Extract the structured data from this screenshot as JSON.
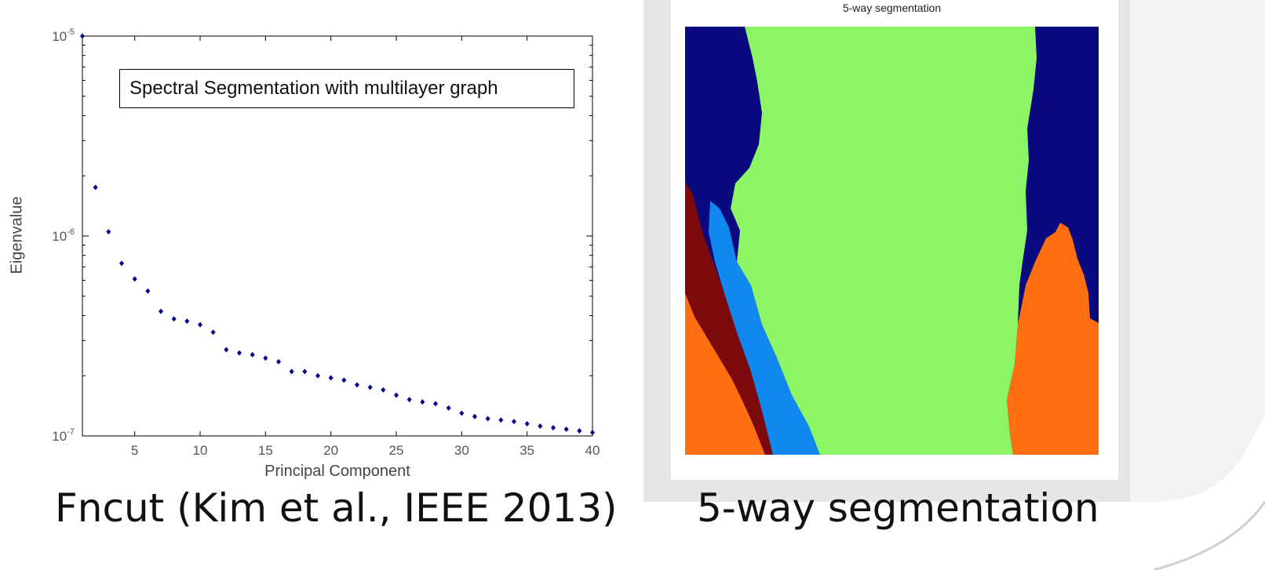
{
  "chart_data": {
    "type": "scatter",
    "legend_text": "Spectral Segmentation with multilayer graph",
    "xlabel": "Principal Component",
    "ylabel": "Eigenvalue",
    "y_scale": "log",
    "xlim": [
      1,
      40
    ],
    "ylim": [
      1e-07,
      1e-05
    ],
    "x_ticks": [
      5,
      10,
      15,
      20,
      25,
      30,
      35,
      40
    ],
    "y_ticks": [
      {
        "value": 1e-05,
        "label_base": "10",
        "label_exp": "-5"
      },
      {
        "value": 1e-06,
        "label_base": "10",
        "label_exp": "-6"
      },
      {
        "value": 1e-07,
        "label_base": "10",
        "label_exp": "-7"
      }
    ],
    "marker_color": "#00008b",
    "series": [
      {
        "x": [
          1,
          2,
          3,
          4,
          5,
          6,
          7,
          8,
          9,
          10,
          11,
          12,
          13,
          14,
          15,
          16,
          17,
          18,
          19,
          20,
          21,
          22,
          23,
          24,
          25,
          26,
          27,
          28,
          29,
          30,
          31,
          32,
          33,
          34,
          35,
          36,
          37,
          38,
          39,
          40
        ],
        "y": [
          1e-05,
          1.75e-06,
          1.05e-06,
          7.3e-07,
          6.1e-07,
          5.3e-07,
          4.2e-07,
          3.85e-07,
          3.75e-07,
          3.6e-07,
          3.3e-07,
          2.7e-07,
          2.6e-07,
          2.55e-07,
          2.45e-07,
          2.35e-07,
          2.1e-07,
          2.1e-07,
          2e-07,
          1.95e-07,
          1.9e-07,
          1.8e-07,
          1.75e-07,
          1.7e-07,
          1.6e-07,
          1.52e-07,
          1.48e-07,
          1.45e-07,
          1.38e-07,
          1.3e-07,
          1.25e-07,
          1.22e-07,
          1.2e-07,
          1.18e-07,
          1.15e-07,
          1.12e-07,
          1.1e-07,
          1.08e-07,
          1.06e-07,
          1.04e-07
        ]
      }
    ]
  },
  "segmentation": {
    "title": "5-way segmentation",
    "colors": {
      "dark_blue": "#0a0a80",
      "light_green": "#8cf565",
      "orange": "#ff6e10",
      "maroon": "#7c0a0a",
      "sky_blue": "#1187f0"
    }
  },
  "captions": {
    "left": "Fncut (Kim et al., IEEE 2013)",
    "right": "5-way segmentation"
  }
}
